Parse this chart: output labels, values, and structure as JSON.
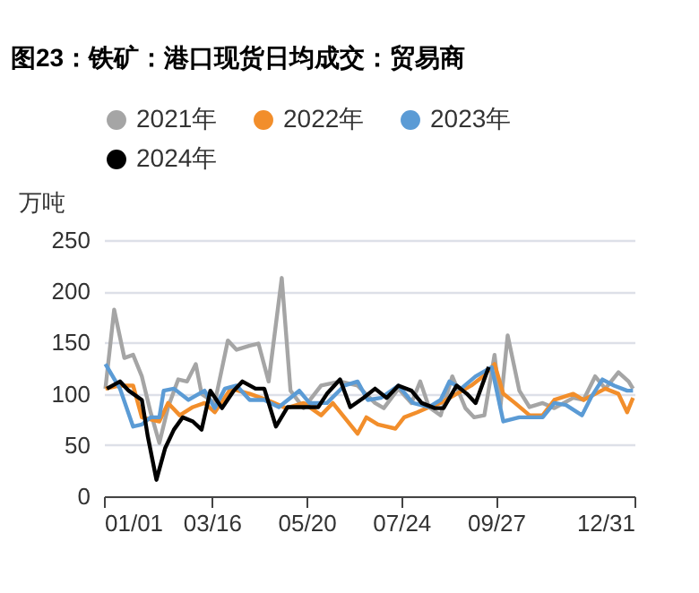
{
  "chart_data": {
    "type": "line",
    "title": "图23：铁矿：港口现货日均成交：贸易商",
    "ylabel": "万吨",
    "xlim": [
      "--01-01",
      "--12-31"
    ],
    "xticks": [
      {
        "value": "--01-01",
        "label": "01/01"
      },
      {
        "value": "--03-16",
        "label": "03/16"
      },
      {
        "value": "--05-20",
        "label": "05/20"
      },
      {
        "value": "--07-24",
        "label": "07/24"
      },
      {
        "value": "--09-27",
        "label": "09/27"
      },
      {
        "value": "--12-31",
        "label": "12/31"
      }
    ],
    "ylim": [
      0,
      250
    ],
    "yticks": [
      0,
      50,
      100,
      150,
      200,
      250
    ],
    "grid": "y",
    "legend": "top",
    "marker": "none",
    "line_style": "solid",
    "series": [
      {
        "name": "2021年",
        "color": "#a5a5a5",
        "x": [
          "--01-02",
          "--01-08",
          "--01-15",
          "--01-21",
          "--01-27",
          "--02-02",
          "--02-08",
          "--02-14",
          "--02-21",
          "--02-27",
          "--03-05",
          "--03-09",
          "--03-18",
          "--03-27",
          "--04-02",
          "--04-11",
          "--04-17",
          "--04-24",
          "--05-03",
          "--05-09",
          "--05-18",
          "--05-30",
          "--06-12",
          "--06-24",
          "--07-06",
          "--07-12",
          "--07-22",
          "--07-31",
          "--08-06",
          "--08-12",
          "--08-20",
          "--08-28",
          "--09-06",
          "--09-12",
          "--09-19",
          "--09-26",
          "--09-30",
          "--10-05",
          "--10-13",
          "--10-20",
          "--10-29",
          "--11-06",
          "--11-19",
          "--11-26",
          "--12-04",
          "--12-11",
          "--12-20",
          "--12-27",
          "--12-30"
        ],
        "values": [
          105,
          182,
          135,
          138,
          117,
          82,
          52,
          87,
          114,
          112,
          129,
          100,
          91,
          152,
          143,
          147,
          149,
          112,
          213,
          103,
          86,
          108,
          112,
          108,
          91,
          86,
          105,
          91,
          112,
          87,
          79,
          117,
          86,
          77,
          79,
          138,
          87,
          157,
          103,
          87,
          91,
          86,
          96,
          94,
          117,
          105,
          121,
          112,
          105
        ]
      },
      {
        "name": "2022年",
        "color": "#f28e2b",
        "x": [
          "--01-02",
          "--01-12",
          "--01-21",
          "--01-27",
          "--02-08",
          "--02-14",
          "--02-22",
          "--03-03",
          "--03-11",
          "--03-18",
          "--03-29",
          "--04-11",
          "--04-23",
          "--05-06",
          "--05-18",
          "--05-30",
          "--06-07",
          "--06-24",
          "--06-30",
          "--07-08",
          "--07-20",
          "--07-26",
          "--08-04",
          "--08-12",
          "--08-20",
          "--08-31",
          "--09-10",
          "--09-18",
          "--09-26",
          "--10-02",
          "--10-10",
          "--10-20",
          "--10-29",
          "--11-06",
          "--11-19",
          "--11-26",
          "--12-11",
          "--12-20",
          "--12-26",
          "--12-30"
        ],
        "values": [
          105,
          108,
          108,
          77,
          73,
          91,
          79,
          87,
          91,
          82,
          105,
          100,
          94,
          86,
          91,
          79,
          91,
          61,
          77,
          70,
          66,
          77,
          82,
          87,
          91,
          100,
          108,
          117,
          129,
          100,
          91,
          79,
          79,
          94,
          100,
          94,
          105,
          100,
          82,
          96
        ]
      },
      {
        "name": "2023年",
        "color": "#5b9bd5",
        "x": [
          "--01-02",
          "--01-12",
          "--01-21",
          "--01-27",
          "--02-02",
          "--02-08",
          "--02-11",
          "--02-18",
          "--02-28",
          "--03-11",
          "--03-18",
          "--03-25",
          "--04-02",
          "--04-11",
          "--04-21",
          "--05-01",
          "--05-15",
          "--05-22",
          "--06-03",
          "--06-15",
          "--06-24",
          "--07-01",
          "--07-10",
          "--07-22",
          "--08-01",
          "--08-12",
          "--08-20",
          "--08-26",
          "--09-03",
          "--09-13",
          "--09-24",
          "--10-02",
          "--10-13",
          "--10-23",
          "--10-29",
          "--11-06",
          "--11-14",
          "--11-25",
          "--12-01",
          "--12-09",
          "--12-17",
          "--12-26",
          "--12-30"
        ],
        "values": [
          129,
          105,
          68,
          70,
          77,
          77,
          103,
          105,
          94,
          103,
          86,
          105,
          108,
          94,
          94,
          87,
          103,
          91,
          91,
          108,
          112,
          94,
          96,
          108,
          91,
          87,
          94,
          112,
          105,
          117,
          126,
          73,
          77,
          77,
          77,
          91,
          89,
          79,
          96,
          114,
          108,
          103,
          103
        ]
      },
      {
        "name": "2024年",
        "color": "#000000",
        "x": [
          "--01-03",
          "--01-12",
          "--01-18",
          "--01-27",
          "--01-31",
          "--02-06",
          "--02-12",
          "--02-18",
          "--02-24",
          "--03-03",
          "--03-09",
          "--03-15",
          "--03-23",
          "--03-31",
          "--04-06",
          "--04-15",
          "--04-21",
          "--04-29",
          "--05-07",
          "--05-18",
          "--05-28",
          "--06-03",
          "--06-12",
          "--06-19",
          "--06-28",
          "--07-06",
          "--07-14",
          "--07-22",
          "--07-31",
          "--08-07",
          "--08-16",
          "--08-22",
          "--08-31",
          "--09-07",
          "--09-13",
          "--09-22"
        ],
        "values": [
          105,
          112,
          103,
          94,
          59,
          16,
          47,
          65,
          77,
          73,
          65,
          103,
          86,
          103,
          112,
          105,
          105,
          68,
          87,
          87,
          87,
          100,
          114,
          87,
          96,
          105,
          96,
          108,
          103,
          91,
          86,
          86,
          108,
          100,
          91,
          126
        ]
      }
    ]
  }
}
